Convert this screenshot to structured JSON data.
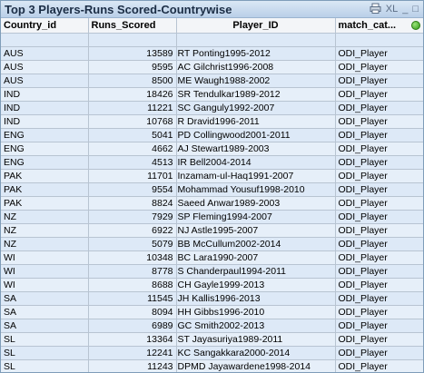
{
  "window": {
    "title": "Top 3 Players-Runs Scored-Countrywise",
    "tools": {
      "xl_label": "XL",
      "minimize_label": "_",
      "restore_label": "□"
    }
  },
  "table": {
    "headers": [
      "Country_id",
      "Runs_Scored",
      "Player_ID",
      "match_cat..."
    ],
    "rows": [
      {
        "country": "AUS",
        "runs": "13589",
        "player": "RT Ponting1995-2012",
        "cat": "ODI_Player"
      },
      {
        "country": "AUS",
        "runs": "9595",
        "player": "AC Gilchrist1996-2008",
        "cat": "ODI_Player"
      },
      {
        "country": "AUS",
        "runs": "8500",
        "player": "ME Waugh1988-2002",
        "cat": "ODI_Player"
      },
      {
        "country": "IND",
        "runs": "18426",
        "player": "SR Tendulkar1989-2012",
        "cat": "ODI_Player"
      },
      {
        "country": "IND",
        "runs": "11221",
        "player": "SC Ganguly1992-2007",
        "cat": "ODI_Player"
      },
      {
        "country": "IND",
        "runs": "10768",
        "player": "R Dravid1996-2011",
        "cat": "ODI_Player"
      },
      {
        "country": "ENG",
        "runs": "5041",
        "player": "PD Collingwood2001-2011",
        "cat": "ODI_Player"
      },
      {
        "country": "ENG",
        "runs": "4662",
        "player": "AJ Stewart1989-2003",
        "cat": "ODI_Player"
      },
      {
        "country": "ENG",
        "runs": "4513",
        "player": "IR Bell2004-2014",
        "cat": "ODI_Player"
      },
      {
        "country": "PAK",
        "runs": "11701",
        "player": "Inzamam-ul-Haq1991-2007",
        "cat": "ODI_Player"
      },
      {
        "country": "PAK",
        "runs": "9554",
        "player": "Mohammad Yousuf1998-2010",
        "cat": "ODI_Player"
      },
      {
        "country": "PAK",
        "runs": "8824",
        "player": "Saeed Anwar1989-2003",
        "cat": "ODI_Player"
      },
      {
        "country": "NZ",
        "runs": "7929",
        "player": "SP Fleming1994-2007",
        "cat": "ODI_Player"
      },
      {
        "country": "NZ",
        "runs": "6922",
        "player": "NJ Astle1995-2007",
        "cat": "ODI_Player"
      },
      {
        "country": "NZ",
        "runs": "5079",
        "player": "BB McCullum2002-2014",
        "cat": "ODI_Player"
      },
      {
        "country": "WI",
        "runs": "10348",
        "player": "BC Lara1990-2007",
        "cat": "ODI_Player"
      },
      {
        "country": "WI",
        "runs": "8778",
        "player": "S Chanderpaul1994-2011",
        "cat": "ODI_Player"
      },
      {
        "country": "WI",
        "runs": "8688",
        "player": "CH Gayle1999-2013",
        "cat": "ODI_Player"
      },
      {
        "country": "SA",
        "runs": "11545",
        "player": "JH Kallis1996-2013",
        "cat": "ODI_Player"
      },
      {
        "country": "SA",
        "runs": "8094",
        "player": "HH Gibbs1996-2010",
        "cat": "ODI_Player"
      },
      {
        "country": "SA",
        "runs": "6989",
        "player": "GC Smith2002-2013",
        "cat": "ODI_Player"
      },
      {
        "country": "SL",
        "runs": "13364",
        "player": "ST Jayasuriya1989-2011",
        "cat": "ODI_Player"
      },
      {
        "country": "SL",
        "runs": "12241",
        "player": "KC Sangakkara2000-2014",
        "cat": "ODI_Player"
      },
      {
        "country": "SL",
        "runs": "11243",
        "player": "DPMD Jayawardene1998-2014",
        "cat": "ODI_Player"
      }
    ]
  },
  "colors": {
    "row_even": "#dde9f7",
    "row_odd": "#e6eff9",
    "status": "#2f9a17"
  },
  "icons": {
    "print": "print-icon",
    "export": "excel-export-icon",
    "minimize": "minimize-icon",
    "restore": "restore-icon",
    "status": "status-dot-icon"
  }
}
